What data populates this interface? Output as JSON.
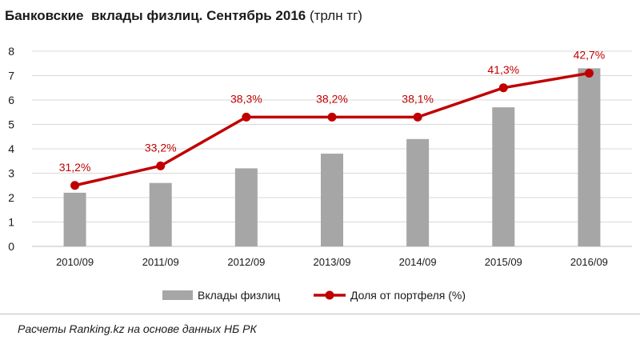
{
  "header": {
    "title_bold": "Банковские  вклады физлиц. Сентябрь 2016",
    "title_unit": " (трлн тг)"
  },
  "footer": {
    "source": "Расчеты Ranking.kz на основе данных НБ РК"
  },
  "colors": {
    "bar": "#a6a6a6",
    "line": "#c00000",
    "grid": "#d9d9d9"
  },
  "chart_data": {
    "type": "bar",
    "title": "Банковские вклады физлиц. Сентябрь 2016 (трлн тг)",
    "categories": [
      "2010/09",
      "2011/09",
      "2012/09",
      "2013/09",
      "2014/09",
      "2015/09",
      "2016/09"
    ],
    "yticks": [
      "0",
      "1",
      "2",
      "3",
      "4",
      "5",
      "6",
      "7",
      "8"
    ],
    "ylim": [
      0,
      8
    ],
    "grid": true,
    "legend_position": "bottom",
    "series": [
      {
        "name": "Вклады физлиц",
        "type": "bar",
        "values": [
          2.2,
          2.6,
          3.2,
          3.8,
          4.4,
          5.7,
          7.3
        ]
      },
      {
        "name": "Доля от портфеля (%)",
        "type": "line",
        "plot_values": [
          2.5,
          3.3,
          5.3,
          5.3,
          5.3,
          6.5,
          7.1
        ],
        "labels": [
          "31,2%",
          "33,2%",
          "38,3%",
          "38,2%",
          "38,1%",
          "41,3%",
          "42,7%"
        ]
      }
    ]
  }
}
